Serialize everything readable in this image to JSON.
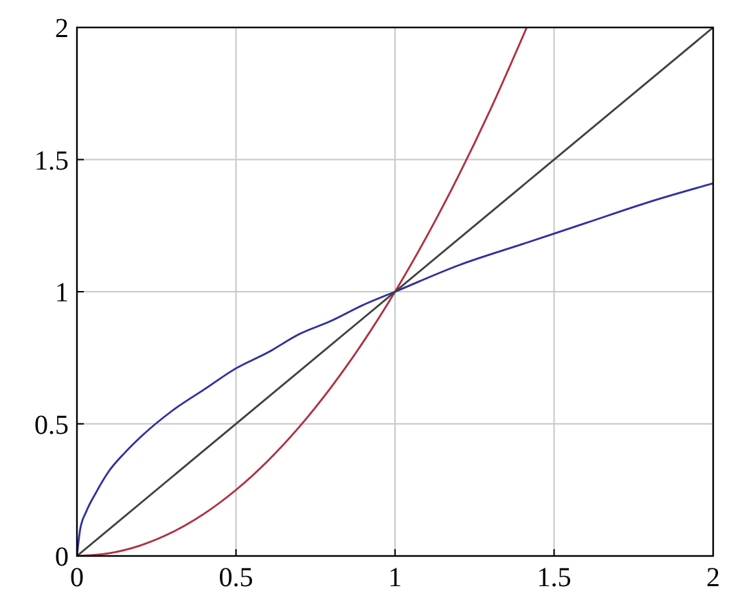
{
  "chart_data": {
    "type": "line",
    "xlim": [
      0,
      2
    ],
    "ylim": [
      0,
      2
    ],
    "xticks": [
      0,
      0.5,
      1,
      1.5,
      2
    ],
    "yticks": [
      0,
      0.5,
      1,
      1.5,
      2
    ],
    "grid": true,
    "marker": "none",
    "line_style": "solid",
    "series": [
      {
        "color": "#b03040",
        "x": [
          0,
          0.1,
          0.2,
          0.3,
          0.4,
          0.5,
          0.6,
          0.7,
          0.8,
          0.9,
          1,
          1.1,
          1.2,
          1.3,
          1.414
        ],
        "values": [
          0,
          0.01,
          0.04,
          0.09,
          0.16,
          0.25,
          0.36,
          0.49,
          0.64,
          0.81,
          1,
          1.21,
          1.44,
          1.69,
          2
        ]
      },
      {
        "color": "#3030a0",
        "x": [
          0,
          0.01,
          0.03,
          0.06,
          0.1,
          0.15,
          0.2,
          0.3,
          0.4,
          0.5,
          0.6,
          0.7,
          0.8,
          0.9,
          1,
          1.2,
          1.4,
          1.6,
          1.8,
          2
        ],
        "values": [
          0,
          0.1,
          0.17,
          0.24,
          0.32,
          0.39,
          0.45,
          0.55,
          0.63,
          0.71,
          0.77,
          0.84,
          0.89,
          0.95,
          1,
          1.1,
          1.18,
          1.26,
          1.34,
          1.41
        ]
      },
      {
        "color": "#404040",
        "x": [
          0,
          2
        ],
        "values": [
          0,
          2
        ]
      }
    ]
  }
}
